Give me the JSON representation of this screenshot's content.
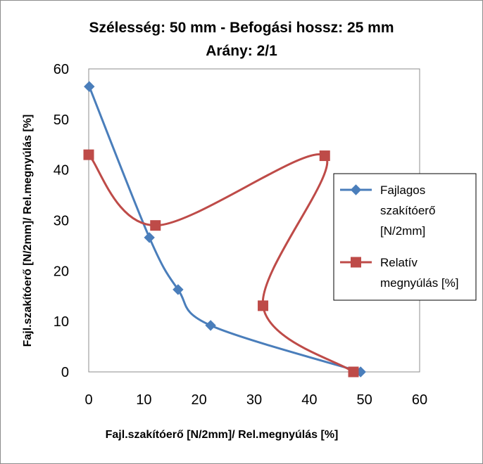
{
  "chart_data": {
    "type": "scatter",
    "title": "Szélesség: 50 mm - Befogási hossz: 25 mm",
    "subtitle": "Arány: 2/1",
    "xlabel": "Fajl.szakítóerő [N/2mm]/ Rel.megnyúlás [%]",
    "ylabel": "Fajl.szakítóerő [N/2mm]/ Rel.megnyúlás [%]",
    "xlim": [
      0,
      60
    ],
    "ylim": [
      0,
      60
    ],
    "xticks": [
      "0",
      "10",
      "20",
      "30",
      "40",
      "50",
      "60"
    ],
    "yticks": [
      "0",
      "10",
      "20",
      "30",
      "40",
      "50",
      "60"
    ],
    "grid": false,
    "legend_position": "right",
    "series": [
      {
        "name": "Fajlagos szakítóerő [N/2mm]",
        "legend_lines": [
          "Fajlagos",
          "szakítóerő",
          "[N/2mm]"
        ],
        "color": "#4a7ebb",
        "marker": "diamond",
        "x": [
          0.1,
          11,
          16.2,
          22.1,
          49.3
        ],
        "y": [
          56.5,
          26.6,
          16.3,
          9.2,
          0
        ]
      },
      {
        "name": "Relatív megnyúlás [%]",
        "legend_lines": [
          "Relatív",
          "megnyúlás [%]"
        ],
        "color": "#be4b48",
        "marker": "square",
        "x": [
          0,
          12.1,
          42.8,
          31.6,
          48
        ],
        "y": [
          43,
          29,
          42.8,
          13.1,
          0
        ]
      }
    ]
  }
}
